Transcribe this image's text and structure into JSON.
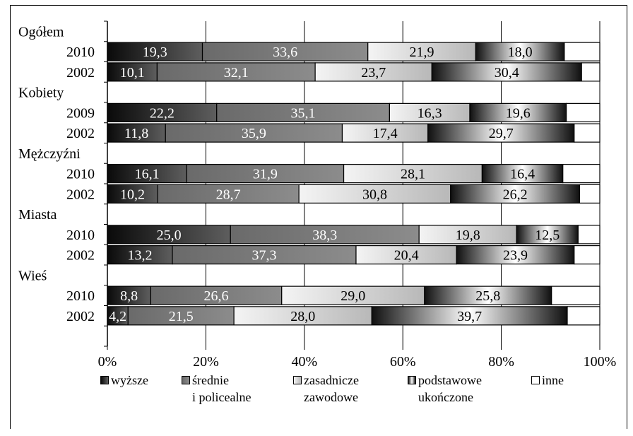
{
  "chart_data": {
    "type": "bar",
    "orientation": "horizontal",
    "stacked": "percent",
    "groups": [
      {
        "label": "Ogółem",
        "rows": [
          {
            "label": "2010",
            "values": [
              19.3,
              33.6,
              21.9,
              18.0,
              7.2
            ]
          },
          {
            "label": "2002",
            "values": [
              10.1,
              32.1,
              23.7,
              30.4,
              3.7
            ]
          }
        ]
      },
      {
        "label": "Kobiety",
        "rows": [
          {
            "label": "2009",
            "values": [
              22.2,
              35.1,
              16.3,
              19.6,
              6.8
            ]
          },
          {
            "label": "2002",
            "values": [
              11.8,
              35.9,
              17.4,
              29.7,
              5.2
            ]
          }
        ]
      },
      {
        "label": "Mężczyźni",
        "rows": [
          {
            "label": "2010",
            "values": [
              16.1,
              31.9,
              28.1,
              16.4,
              7.5
            ]
          },
          {
            "label": "2002",
            "values": [
              10.2,
              28.7,
              30.8,
              26.2,
              4.1
            ]
          }
        ]
      },
      {
        "label": "Miasta",
        "rows": [
          {
            "label": "2010",
            "values": [
              25.0,
              38.3,
              19.8,
              12.5,
              4.4
            ]
          },
          {
            "label": "2002",
            "values": [
              13.2,
              37.3,
              20.4,
              23.9,
              5.2
            ]
          }
        ]
      },
      {
        "label": "Wieś",
        "rows": [
          {
            "label": "2010",
            "values": [
              8.8,
              26.6,
              29.0,
              25.8,
              9.8
            ]
          },
          {
            "label": "2002",
            "values": [
              4.2,
              21.5,
              28.0,
              39.7,
              6.6
            ]
          }
        ]
      }
    ],
    "series": [
      {
        "name": "wyższe",
        "legend_text": "wyższe"
      },
      {
        "name": "średnie i policealne",
        "legend_text": "średnie\ni policealne"
      },
      {
        "name": "zasadnicze zawodowe",
        "legend_text": "zasadnicze\nzawodowe"
      },
      {
        "name": "podstawowe ukończone",
        "legend_text": "podstawowe\nukończone"
      },
      {
        "name": "inne",
        "legend_text": "inne"
      }
    ],
    "labeled_series": [
      0,
      1,
      2,
      3
    ],
    "x_ticks": [
      "0%",
      "20%",
      "40%",
      "60%",
      "80%",
      "100%"
    ],
    "xlim": [
      0,
      100
    ],
    "grid": "vertical",
    "legend": "bottom",
    "colors": {
      "wyzsze": [
        "#111111",
        "#5a5a5a"
      ],
      "srednie": [
        "#6e6e6e",
        "#8a8a8a"
      ],
      "zasadnicze": [
        "#bdbdbd",
        "#f0f0f0"
      ],
      "podstawowe": [
        "#ffffff",
        "#1a1a1a"
      ],
      "inne": [
        "#ffffff",
        "#ffffff"
      ]
    }
  }
}
